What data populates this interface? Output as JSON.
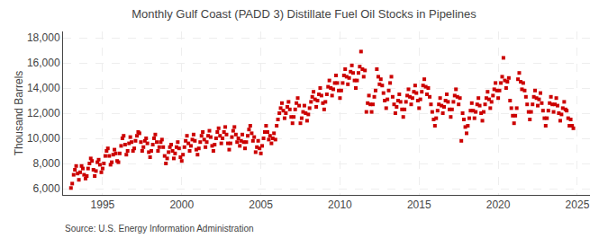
{
  "chart_data": {
    "type": "scatter",
    "title": "Monthly Gulf Coast (PADD 3) Distillate Fuel Oil Stocks in Pipelines",
    "ylabel": "Thousand Barrels",
    "annotations": [
      "Source: U.S. Energy Information Administration"
    ],
    "color": "#cc0000",
    "marker": "square",
    "grid": true,
    "xlim": [
      1992.5,
      2025.8
    ],
    "ylim": [
      5500,
      18500
    ],
    "xticks": [
      1995,
      2000,
      2005,
      2010,
      2015,
      2020,
      2025
    ],
    "yticks": [
      {
        "value": 6000,
        "label": "6,000"
      },
      {
        "value": 8000,
        "label": "8,000"
      },
      {
        "value": 10000,
        "label": "10,000"
      },
      {
        "value": 12000,
        "label": "12,000"
      },
      {
        "value": 14000,
        "label": "14,000"
      },
      {
        "value": 16000,
        "label": "16,000"
      },
      {
        "value": 18000,
        "label": "18,000"
      }
    ],
    "x": [
      1993.0,
      1993.08,
      1993.17,
      1993.25,
      1993.33,
      1993.42,
      1993.5,
      1993.58,
      1993.67,
      1993.75,
      1993.83,
      1993.92,
      1994.0,
      1994.08,
      1994.17,
      1994.25,
      1994.33,
      1994.42,
      1994.5,
      1994.58,
      1994.67,
      1994.75,
      1994.83,
      1994.92,
      1995.0,
      1995.08,
      1995.17,
      1995.25,
      1995.33,
      1995.42,
      1995.5,
      1995.58,
      1995.67,
      1995.75,
      1995.83,
      1995.92,
      1996.0,
      1996.08,
      1996.17,
      1996.25,
      1996.33,
      1996.42,
      1996.5,
      1996.58,
      1996.67,
      1996.75,
      1996.83,
      1996.92,
      1997.0,
      1997.08,
      1997.17,
      1997.25,
      1997.33,
      1997.42,
      1997.5,
      1997.58,
      1997.67,
      1997.75,
      1997.83,
      1997.92,
      1998.0,
      1998.08,
      1998.17,
      1998.25,
      1998.33,
      1998.42,
      1998.5,
      1998.58,
      1998.67,
      1998.75,
      1998.83,
      1998.92,
      1999.0,
      1999.08,
      1999.17,
      1999.25,
      1999.33,
      1999.42,
      1999.5,
      1999.58,
      1999.67,
      1999.75,
      1999.83,
      1999.92,
      2000.0,
      2000.08,
      2000.17,
      2000.25,
      2000.33,
      2000.42,
      2000.5,
      2000.58,
      2000.67,
      2000.75,
      2000.83,
      2000.92,
      2001.0,
      2001.08,
      2001.17,
      2001.25,
      2001.33,
      2001.42,
      2001.5,
      2001.58,
      2001.67,
      2001.75,
      2001.83,
      2001.92,
      2002.0,
      2002.08,
      2002.17,
      2002.25,
      2002.33,
      2002.42,
      2002.5,
      2002.58,
      2002.67,
      2002.75,
      2002.83,
      2002.92,
      2003.0,
      2003.08,
      2003.17,
      2003.25,
      2003.33,
      2003.42,
      2003.5,
      2003.58,
      2003.67,
      2003.75,
      2003.83,
      2003.92,
      2004.0,
      2004.08,
      2004.17,
      2004.25,
      2004.33,
      2004.42,
      2004.5,
      2004.58,
      2004.67,
      2004.75,
      2004.83,
      2004.92,
      2005.0,
      2005.08,
      2005.17,
      2005.25,
      2005.33,
      2005.42,
      2005.5,
      2005.58,
      2005.67,
      2005.75,
      2005.83,
      2005.92,
      2006.0,
      2006.08,
      2006.17,
      2006.25,
      2006.33,
      2006.42,
      2006.5,
      2006.58,
      2006.67,
      2006.75,
      2006.83,
      2006.92,
      2007.0,
      2007.08,
      2007.17,
      2007.25,
      2007.33,
      2007.42,
      2007.5,
      2007.58,
      2007.67,
      2007.75,
      2007.83,
      2007.92,
      2008.0,
      2008.08,
      2008.17,
      2008.25,
      2008.33,
      2008.42,
      2008.5,
      2008.58,
      2008.67,
      2008.75,
      2008.83,
      2008.92,
      2009.0,
      2009.08,
      2009.17,
      2009.25,
      2009.33,
      2009.42,
      2009.5,
      2009.58,
      2009.67,
      2009.75,
      2009.83,
      2009.92,
      2010.0,
      2010.08,
      2010.17,
      2010.25,
      2010.33,
      2010.42,
      2010.5,
      2010.58,
      2010.67,
      2010.75,
      2010.83,
      2010.92,
      2011.0,
      2011.08,
      2011.17,
      2011.25,
      2011.33,
      2011.42,
      2011.5,
      2011.58,
      2011.67,
      2011.75,
      2011.83,
      2011.92,
      2012.0,
      2012.08,
      2012.17,
      2012.25,
      2012.33,
      2012.42,
      2012.5,
      2012.58,
      2012.67,
      2012.75,
      2012.83,
      2012.92,
      2013.0,
      2013.08,
      2013.17,
      2013.25,
      2013.33,
      2013.42,
      2013.5,
      2013.58,
      2013.67,
      2013.75,
      2013.83,
      2013.92,
      2014.0,
      2014.08,
      2014.17,
      2014.25,
      2014.33,
      2014.42,
      2014.5,
      2014.58,
      2014.67,
      2014.75,
      2014.83,
      2014.92,
      2015.0,
      2015.08,
      2015.17,
      2015.25,
      2015.33,
      2015.42,
      2015.5,
      2015.58,
      2015.67,
      2015.75,
      2015.83,
      2015.92,
      2016.0,
      2016.08,
      2016.17,
      2016.25,
      2016.33,
      2016.42,
      2016.5,
      2016.58,
      2016.67,
      2016.75,
      2016.83,
      2016.92,
      2017.0,
      2017.08,
      2017.17,
      2017.25,
      2017.33,
      2017.42,
      2017.5,
      2017.58,
      2017.67,
      2017.75,
      2017.83,
      2017.92,
      2018.0,
      2018.08,
      2018.17,
      2018.25,
      2018.33,
      2018.42,
      2018.5,
      2018.58,
      2018.67,
      2018.75,
      2018.83,
      2018.92,
      2019.0,
      2019.08,
      2019.17,
      2019.25,
      2019.33,
      2019.42,
      2019.5,
      2019.58,
      2019.67,
      2019.75,
      2019.83,
      2019.92,
      2020.0,
      2020.08,
      2020.17,
      2020.25,
      2020.33,
      2020.42,
      2020.5,
      2020.58,
      2020.67,
      2020.75,
      2020.83,
      2020.92,
      2021.0,
      2021.08,
      2021.17,
      2021.25,
      2021.33,
      2021.42,
      2021.5,
      2021.58,
      2021.67,
      2021.75,
      2021.83,
      2021.92,
      2022.0,
      2022.08,
      2022.17,
      2022.25,
      2022.33,
      2022.42,
      2022.5,
      2022.58,
      2022.67,
      2022.75,
      2022.83,
      2022.92,
      2023.0,
      2023.08,
      2023.17,
      2023.25,
      2023.33,
      2023.42,
      2023.5,
      2023.58,
      2023.67,
      2023.75,
      2023.83,
      2023.92,
      2024.0,
      2024.08,
      2024.17,
      2024.25,
      2024.33,
      2024.42,
      2024.5,
      2024.58,
      2024.67,
      2024.75
    ],
    "values": [
      6050,
      6400,
      7100,
      7500,
      7800,
      7200,
      6700,
      7300,
      7800,
      7600,
      7100,
      6800,
      7000,
      7600,
      8000,
      8400,
      8200,
      7500,
      7000,
      7400,
      8100,
      8300,
      7900,
      7300,
      7600,
      8000,
      8600,
      9000,
      9200,
      8600,
      7900,
      8100,
      8700,
      9100,
      8800,
      8200,
      8100,
      8800,
      9400,
      10000,
      10200,
      9500,
      8700,
      9000,
      9600,
      10100,
      9700,
      9000,
      9200,
      9800,
      10200,
      10500,
      10400,
      9700,
      9000,
      9300,
      9800,
      10000,
      9600,
      8900,
      8500,
      9000,
      9500,
      10000,
      10300,
      9700,
      9000,
      9300,
      9700,
      9900,
      9300,
      8600,
      8000,
      8400,
      8900,
      9300,
      9500,
      9000,
      8400,
      8800,
      9300,
      9700,
      9200,
      8500,
      8200,
      8700,
      9300,
      9800,
      10200,
      9600,
      9000,
      9400,
      9900,
      10300,
      9800,
      9100,
      8700,
      9200,
      9700,
      10200,
      10500,
      9900,
      9300,
      9700,
      10200,
      10600,
      10100,
      9400,
      9000,
      9500,
      10000,
      10500,
      10800,
      10200,
      9600,
      10000,
      10500,
      10900,
      10300,
      9600,
      9100,
      9600,
      10100,
      10600,
      10900,
      10300,
      9700,
      10000,
      9400,
      9800,
      10300,
      9700,
      9200,
      9700,
      10200,
      10700,
      11000,
      10400,
      9800,
      10100,
      8900,
      9300,
      9800,
      9200,
      8800,
      9400,
      10000,
      10500,
      11000,
      10500,
      9900,
      10200,
      9600,
      10000,
      10400,
      9900,
      11000,
      11500,
      12000,
      12400,
      12800,
      12200,
      11600,
      12000,
      12500,
      12900,
      12300,
      11700,
      11200,
      11700,
      12300,
      12800,
      13200,
      12600,
      11200,
      11600,
      12100,
      12600,
      12000,
      11400,
      11900,
      12400,
      12900,
      13300,
      13700,
      13100,
      12500,
      13000,
      13500,
      14000,
      13400,
      12800,
      12300,
      12900,
      13500,
      14100,
      14600,
      14000,
      13400,
      13900,
      14400,
      15000,
      14400,
      13800,
      13200,
      13800,
      14400,
      15000,
      15500,
      14900,
      14300,
      14800,
      15300,
      15800,
      15200,
      14600,
      14000,
      14600,
      15200,
      15700,
      16900,
      15500,
      14900,
      15400,
      12100,
      12800,
      13400,
      12700,
      12100,
      12700,
      13300,
      13800,
      15500,
      14900,
      14300,
      14700,
      14200,
      13600,
      13000,
      12400,
      13100,
      13800,
      14400,
      14900,
      13300,
      12700,
      12000,
      12500,
      13000,
      13500,
      12900,
      12300,
      11700,
      12300,
      12900,
      13400,
      13900,
      13300,
      12700,
      13200,
      13700,
      14200,
      13600,
      13000,
      12400,
      13100,
      13700,
      14200,
      14700,
      14100,
      13500,
      14000,
      13300,
      12700,
      12100,
      11500,
      11000,
      11600,
      12200,
      12700,
      13200,
      12600,
      12000,
      12500,
      13000,
      13500,
      12900,
      12300,
      11700,
      12300,
      12900,
      13400,
      13900,
      13300,
      12700,
      13200,
      9800,
      12000,
      11500,
      10900,
      10400,
      11000,
      11600,
      12200,
      12800,
      12200,
      11600,
      12100,
      12700,
      13200,
      12600,
      12000,
      11400,
      12100,
      12700,
      13200,
      13700,
      13100,
      12400,
      12900,
      13400,
      13900,
      14400,
      13800,
      13200,
      13800,
      14400,
      14900,
      16400,
      14600,
      14000,
      14500,
      14800,
      13000,
      12400,
      11800,
      11200,
      11800,
      12400,
      14700,
      15200,
      14500,
      13900,
      14400,
      13800,
      13300,
      12700,
      12100,
      11500,
      12100,
      12700,
      13300,
      13800,
      13200,
      12600,
      13100,
      13600,
      12800,
      12200,
      11600,
      11000,
      11600,
      12200,
      12800,
      13300,
      12700,
      12100,
      12700,
      13200,
      12600,
      12000,
      11400,
      11900,
      12400,
      12900,
      12300,
      12200,
      11600,
      11000,
      11500,
      11000,
      10800
    ]
  }
}
